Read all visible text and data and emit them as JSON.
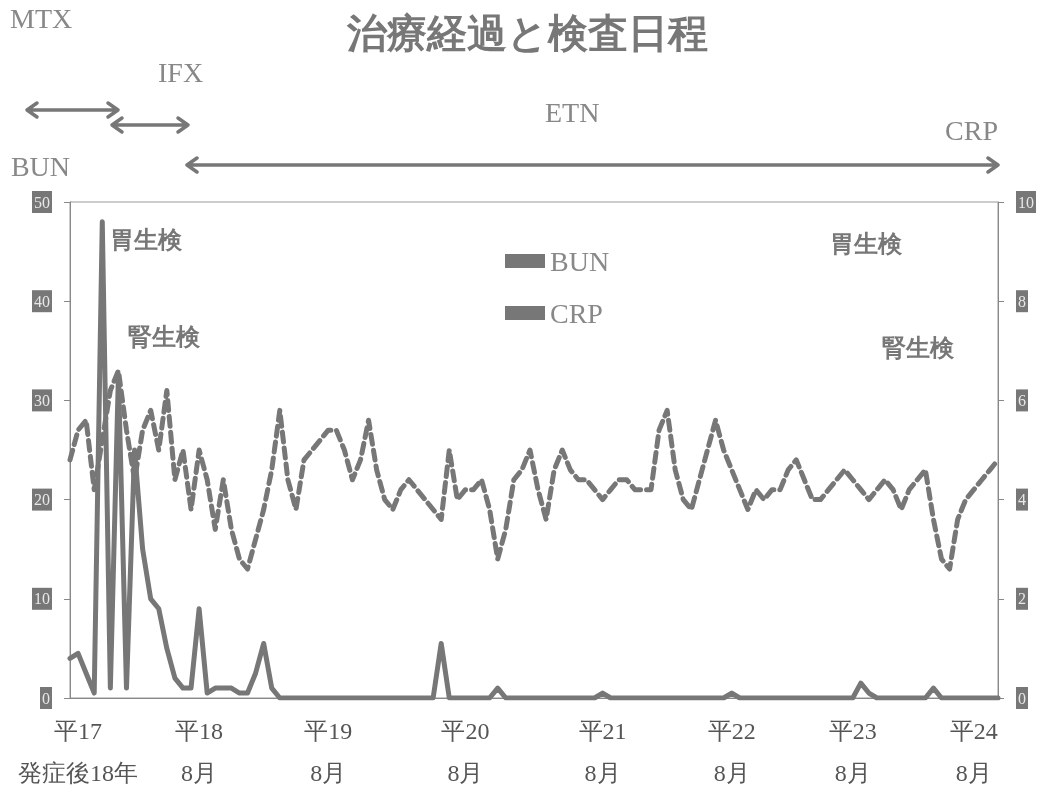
{
  "chart_data": {
    "type": "line",
    "title": "治療経過と検査日程",
    "categories": [
      null,
      "平17\n発症後18年",
      null,
      null,
      null,
      null,
      null,
      null,
      null,
      null,
      null,
      null,
      null,
      null,
      null,
      null,
      "平18\n8月",
      null,
      null,
      null,
      null,
      null,
      null,
      null,
      null,
      null,
      null,
      null,
      null,
      null,
      null,
      null,
      "平19\n8月",
      null,
      null,
      null,
      null,
      null,
      null,
      null,
      null,
      null,
      null,
      null,
      null,
      null,
      null,
      null,
      null,
      "平20\n8月",
      null,
      null,
      null,
      null,
      null,
      null,
      null,
      null,
      null,
      null,
      null,
      null,
      null,
      null,
      null,
      null,
      "平21\n8月",
      null,
      null,
      null,
      null,
      null,
      null,
      null,
      null,
      null,
      null,
      null,
      null,
      null,
      null,
      null,
      "平22\n8月",
      null,
      null,
      null,
      null,
      null,
      null,
      null,
      null,
      null,
      null,
      null,
      null,
      null,
      null,
      "平23\n8月",
      null,
      null,
      null,
      null,
      null,
      null,
      null,
      null,
      null,
      null,
      null,
      null,
      null,
      null,
      "平24\n8月",
      null,
      null,
      null
    ],
    "series": [
      {
        "name": "BUN",
        "color": "#777777",
        "line_style": "dashed",
        "values": [
          24,
          27,
          28,
          21,
          26,
          31,
          33,
          27,
          22,
          27,
          29,
          25,
          31,
          22,
          25,
          19,
          25,
          22,
          17,
          22,
          17,
          14,
          13,
          16,
          19,
          23,
          29,
          22,
          19,
          24,
          25,
          26,
          27,
          27,
          25,
          22,
          24,
          28,
          23,
          20,
          19,
          21,
          22,
          21,
          20,
          19,
          18,
          25,
          20,
          21,
          21,
          22,
          19,
          14,
          17,
          22,
          23,
          25,
          21,
          18,
          23,
          25,
          23,
          22,
          22,
          21,
          20,
          21,
          22,
          22,
          21,
          21,
          21,
          27,
          29,
          23,
          20,
          19,
          22,
          25,
          28,
          25,
          23,
          21,
          19,
          21,
          20,
          21,
          21,
          23,
          24,
          22,
          20,
          20,
          21,
          22,
          23,
          22,
          21,
          20,
          21,
          22,
          21,
          19,
          21,
          22,
          23,
          18,
          14,
          13,
          18,
          20,
          21,
          22,
          23,
          24
        ]
      },
      {
        "name": "CRP",
        "color": "#777777",
        "line_style": "solid",
        "axis": "y2",
        "values": [
          0.8,
          0.9,
          0.5,
          0.1,
          9.6,
          0.2,
          6.5,
          0.2,
          5,
          3,
          2,
          1.8,
          1,
          0.4,
          0.2,
          0.2,
          1.8,
          0.1,
          0.2,
          0.2,
          0.2,
          0.1,
          0.1,
          0.5,
          1.1,
          0.2,
          0,
          0,
          0,
          0,
          0,
          0,
          0,
          0,
          0,
          0,
          0,
          0,
          0,
          0,
          0,
          0,
          0,
          0,
          0,
          0,
          1.1,
          0,
          0,
          0,
          0,
          0,
          0,
          0.2,
          0,
          0,
          0,
          0,
          0,
          0,
          0,
          0,
          0,
          0,
          0,
          0,
          0.1,
          0,
          0,
          0,
          0,
          0,
          0,
          0,
          0,
          0,
          0,
          0,
          0,
          0,
          0,
          0,
          0.1,
          0,
          0,
          0,
          0,
          0,
          0,
          0,
          0,
          0,
          0,
          0,
          0,
          0,
          0,
          0,
          0.3,
          0.1,
          0,
          0,
          0,
          0,
          0,
          0,
          0,
          0.2,
          0,
          0,
          0,
          0,
          0,
          0,
          0,
          0
        ]
      }
    ],
    "ylabel": "BUN",
    "y2label": "CRP",
    "ylim": [
      0,
      50
    ],
    "yticks": [
      0,
      10,
      20,
      30,
      40,
      50
    ],
    "y2lim": [
      0,
      10
    ],
    "y2ticks": [
      0,
      2,
      4,
      6,
      8,
      10
    ],
    "annotations": [
      "MTX",
      "IFX",
      "ETN",
      "胃生検",
      "腎生検",
      "胃生検",
      "腎生検"
    ],
    "legend": "top",
    "grid": false,
    "marker": "none"
  }
}
